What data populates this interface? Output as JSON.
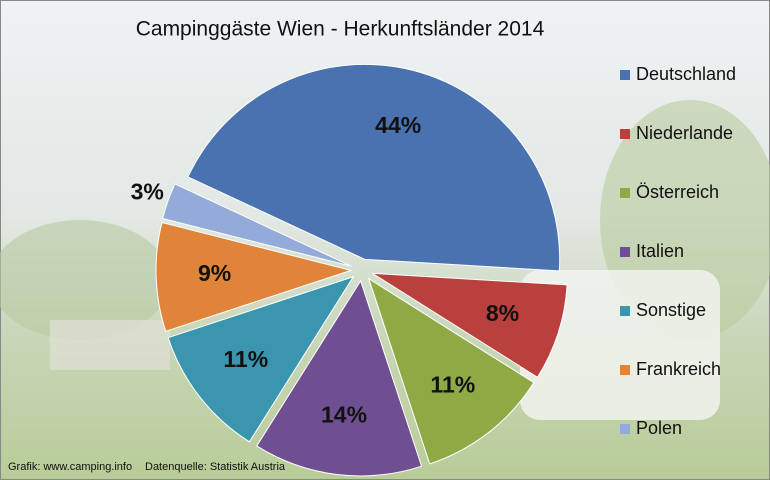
{
  "chart_data": {
    "type": "pie",
    "title": "Campinggäste Wien - Herkunftsländer 2014",
    "categories": [
      "Deutschland",
      "Niederlande",
      "Österreich",
      "Italien",
      "Sonstige",
      "Frankreich",
      "Polen"
    ],
    "values": [
      44,
      8,
      11,
      14,
      11,
      9,
      3
    ],
    "value_labels": [
      "44%",
      "8%",
      "11%",
      "14%",
      "11%",
      "9%",
      "3%"
    ],
    "colors": [
      "#4a72b0",
      "#b9403c",
      "#8faa45",
      "#6f4f91",
      "#3996ae",
      "#e0843a",
      "#94aad8"
    ],
    "legend": "right",
    "credit": "Grafik: www.camping.info",
    "source": "Datenquelle: Statistik Austria"
  }
}
